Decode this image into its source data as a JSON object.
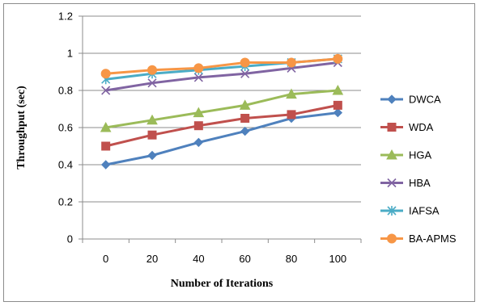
{
  "chart_data": {
    "type": "line",
    "title": "",
    "xlabel": "Number of Iterations",
    "ylabel": "Throughput (sec)",
    "x": [
      0,
      20,
      40,
      60,
      80,
      100
    ],
    "x_tick_labels": [
      "0",
      "20",
      "40",
      "60",
      "80",
      "100"
    ],
    "ylim": [
      0,
      1.2
    ],
    "y_ticks": [
      0,
      0.2,
      0.4,
      0.6,
      0.8,
      1,
      1.2
    ],
    "y_tick_labels": [
      "0",
      "0.2",
      "0.4",
      "0.6",
      "0.8",
      "1",
      "1.2"
    ],
    "grid": "horizontal",
    "legend_position": "right",
    "series": [
      {
        "name": "DWCA",
        "color": "#4F81BD",
        "marker": "diamond",
        "values": [
          0.4,
          0.45,
          0.52,
          0.58,
          0.65,
          0.68
        ]
      },
      {
        "name": "WDA",
        "color": "#C0504D",
        "marker": "square",
        "values": [
          0.5,
          0.56,
          0.61,
          0.65,
          0.67,
          0.72
        ]
      },
      {
        "name": "HGA",
        "color": "#9BBB59",
        "marker": "triangle",
        "values": [
          0.6,
          0.64,
          0.68,
          0.72,
          0.78,
          0.8
        ]
      },
      {
        "name": "HBA",
        "color": "#8064A2",
        "marker": "x",
        "values": [
          0.8,
          0.84,
          0.87,
          0.89,
          0.92,
          0.95
        ]
      },
      {
        "name": "IAFSA",
        "color": "#4BACC6",
        "marker": "star",
        "values": [
          0.86,
          0.89,
          0.91,
          0.93,
          0.95,
          0.97
        ]
      },
      {
        "name": "BA-APMS",
        "color": "#F79646",
        "marker": "circle",
        "values": [
          0.89,
          0.91,
          0.92,
          0.95,
          0.95,
          0.97
        ]
      }
    ]
  }
}
